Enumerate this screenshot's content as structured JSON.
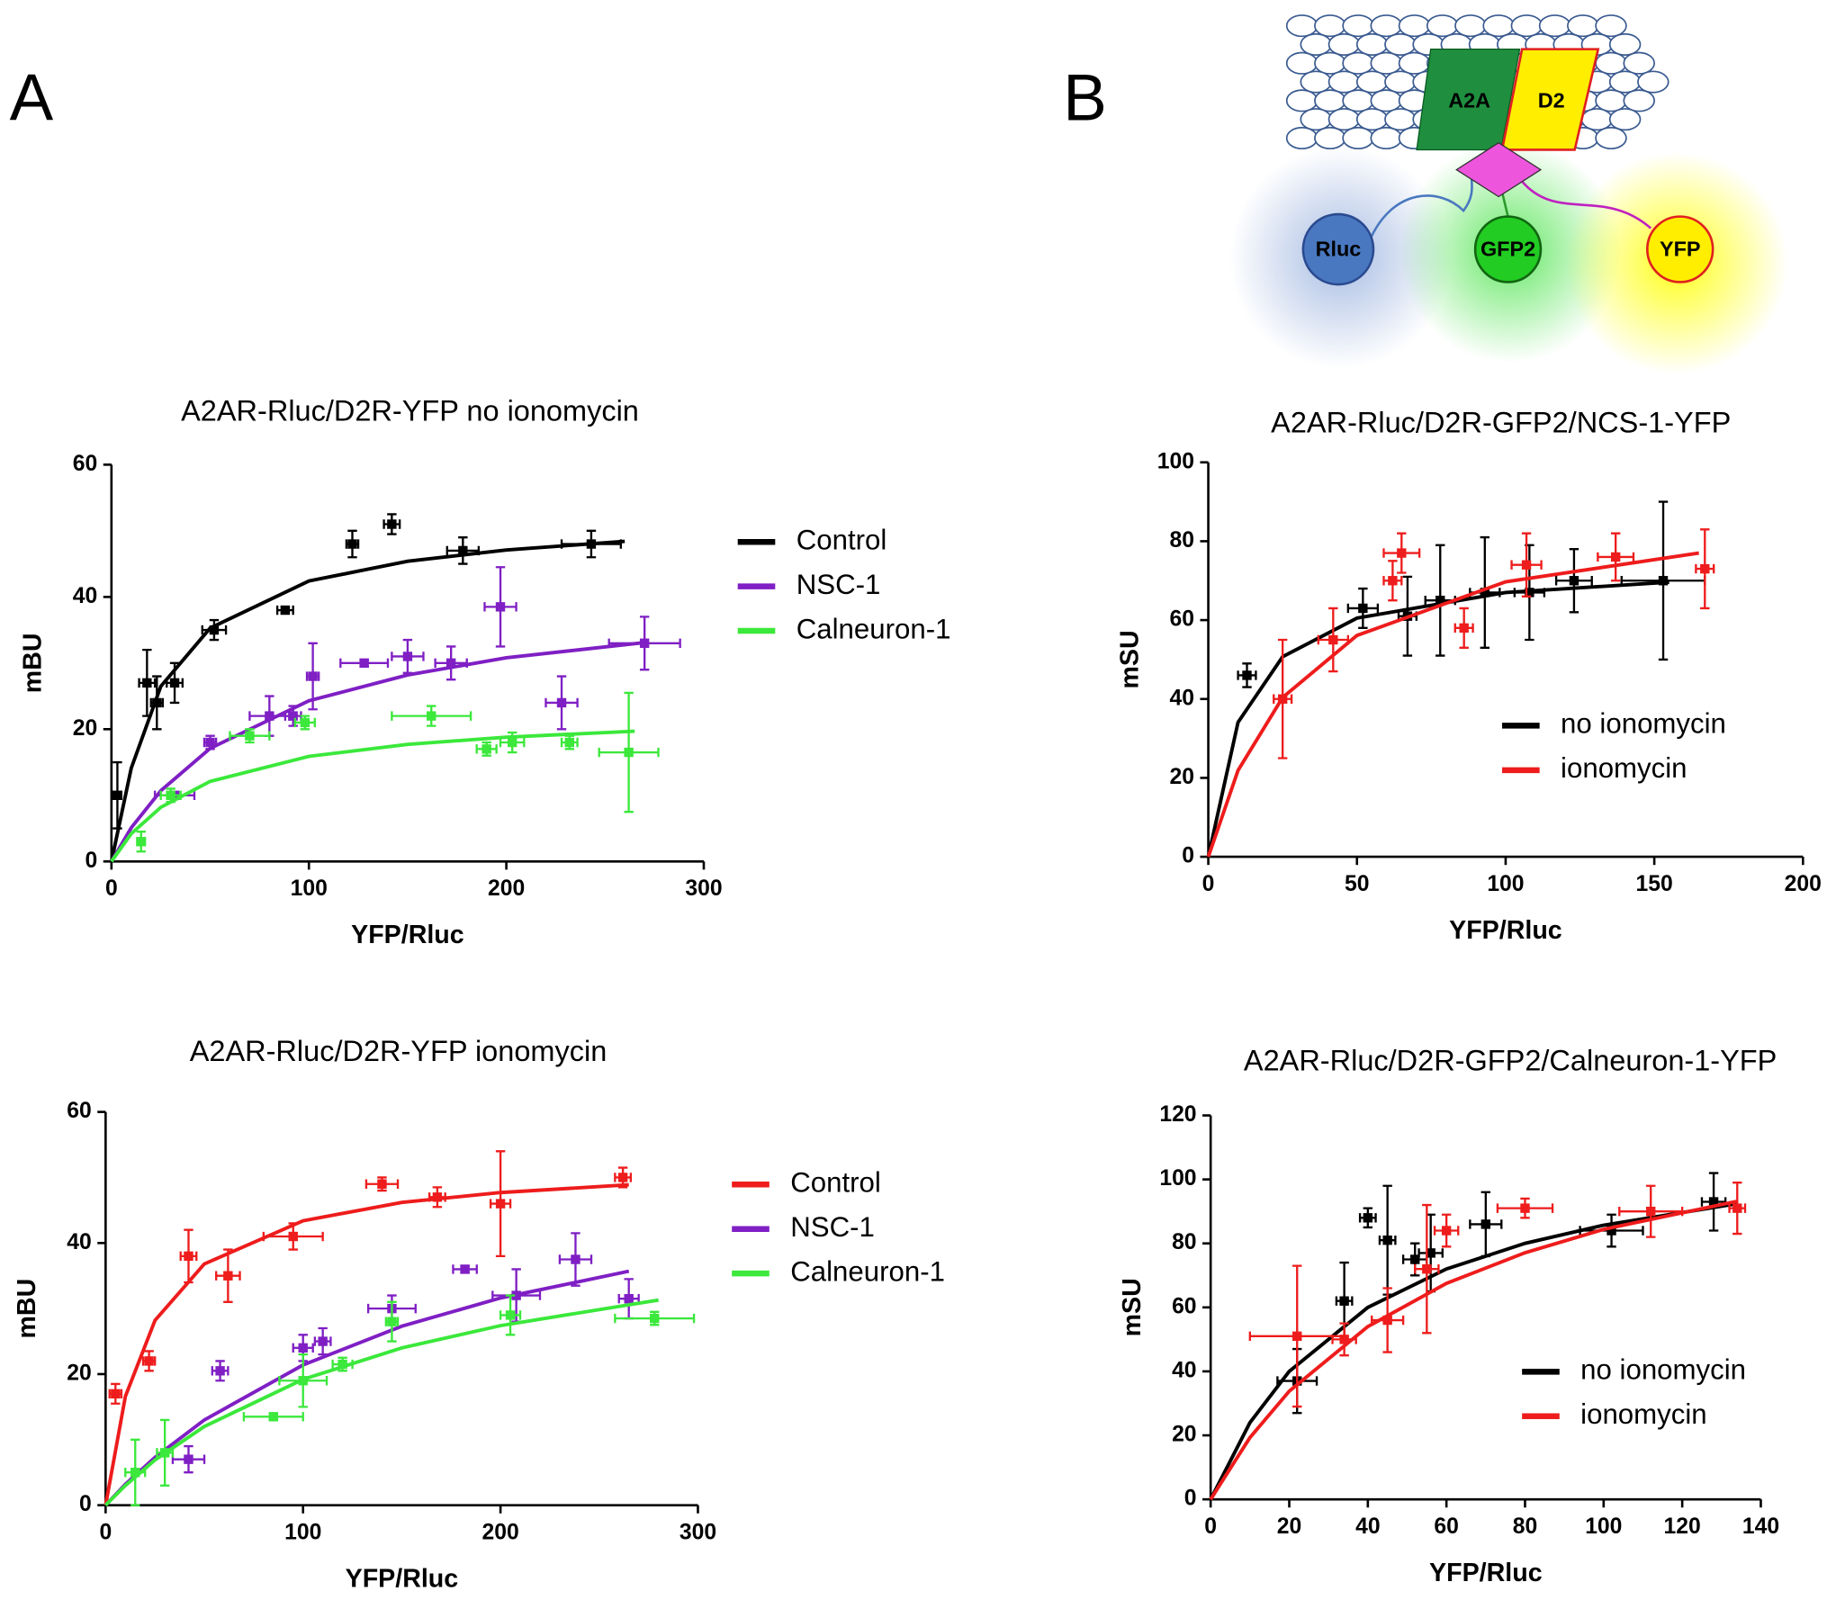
{
  "panel_labels": [
    "A",
    "B"
  ],
  "diagram": {
    "labels": [
      "A2A",
      "D2",
      "Rluc",
      "GFP2",
      "YFP"
    ]
  },
  "chart_data": [
    {
      "type": "scatter",
      "title": "A2AR-Rluc/D2R-YFP no ionomycin",
      "xlabel": "YFP/Rluc",
      "ylabel": "mBU",
      "xlim": [
        0,
        300
      ],
      "ylim": [
        0,
        60
      ],
      "xticks": [
        0,
        100,
        200,
        300
      ],
      "yticks": [
        0,
        20,
        40,
        60
      ],
      "legend": "right",
      "series": [
        {
          "name": "Control",
          "color": "#000000",
          "x": [
            3,
            18,
            23,
            32,
            52,
            88,
            122,
            142,
            178,
            243
          ],
          "values": [
            10,
            27,
            24,
            27,
            35,
            38,
            48,
            51,
            47,
            48
          ],
          "xerr": [
            2,
            4,
            3,
            4,
            6,
            4,
            3,
            4,
            8,
            15
          ],
          "yerr": [
            5,
            5,
            4,
            3,
            1.5,
            0.5,
            2,
            1.5,
            2,
            2
          ],
          "fit": {
            "x": [
              0,
              10,
              25,
              50,
              100,
              150,
              200,
              260
            ],
            "values": [
              0,
              14.1,
              26.5,
              35.3,
              42.4,
              45.4,
              47.1,
              48.4
            ]
          }
        },
        {
          "name": "NSC-1",
          "color": "#7f1fc4",
          "x": [
            32,
            50,
            80,
            92,
            102,
            128,
            150,
            172,
            197,
            228,
            270
          ],
          "values": [
            10,
            18,
            22,
            22,
            28,
            30,
            31,
            30,
            38.5,
            24,
            33
          ],
          "xerr": [
            10,
            3,
            10,
            4,
            3,
            12,
            8,
            8,
            8,
            8,
            18
          ],
          "yerr": [
            0.5,
            1,
            3,
            1.5,
            5,
            0.5,
            2.5,
            2.5,
            6,
            4,
            4
          ],
          "fit": {
            "x": [
              0,
              10,
              25,
              50,
              100,
              150,
              200,
              270
            ],
            "values": [
              0,
              5.1,
              10.7,
              17.1,
              24.3,
              28.2,
              30.8,
              33.1
            ]
          }
        },
        {
          "name": "Calneuron-1",
          "color": "#3be83b",
          "x": [
            15,
            30,
            70,
            98,
            162,
            190,
            203,
            232,
            262
          ],
          "values": [
            3,
            10,
            19,
            21,
            22,
            17,
            18,
            18,
            16.5
          ],
          "xerr": [
            2,
            5,
            10,
            5,
            20,
            5,
            6,
            4,
            15
          ],
          "yerr": [
            1.5,
            1,
            1,
            1,
            1.5,
            1,
            1.5,
            1,
            9
          ],
          "fit": {
            "x": [
              0,
              10,
              25,
              50,
              100,
              150,
              200,
              265
            ],
            "values": [
              0,
              4.2,
              8.2,
              12.1,
              15.9,
              17.7,
              18.8,
              19.7
            ]
          }
        }
      ]
    },
    {
      "type": "scatter",
      "title": "A2AR-Rluc/D2R-YFP ionomycin",
      "xlabel": "YFP/Rluc",
      "ylabel": "mBU",
      "xlim": [
        0,
        300
      ],
      "ylim": [
        0,
        60
      ],
      "xticks": [
        0,
        100,
        200,
        300
      ],
      "yticks": [
        0,
        20,
        40,
        60
      ],
      "legend": "right",
      "series": [
        {
          "name": "Control",
          "color": "#ee1c1c",
          "x": [
            5,
            22,
            42,
            62,
            95,
            140,
            168,
            200,
            262
          ],
          "values": [
            17,
            22,
            38,
            35,
            41,
            49,
            47,
            46,
            50
          ],
          "xerr": [
            3,
            3,
            4,
            6,
            15,
            8,
            4,
            5,
            4
          ],
          "yerr": [
            1.5,
            1.5,
            4,
            4,
            2,
            1,
            1.5,
            8,
            1.5
          ],
          "fit": {
            "x": [
              0,
              10,
              25,
              50,
              100,
              150,
              200,
              265
            ],
            "values": [
              0,
              16.6,
              28.2,
              36.8,
              43.4,
              46.2,
              47.7,
              48.9
            ]
          }
        },
        {
          "name": "NSC-1",
          "color": "#7f1fc4",
          "x": [
            42,
            58,
            100,
            110,
            145,
            182,
            208,
            238,
            265
          ],
          "values": [
            7,
            20.5,
            24,
            25,
            30,
            36,
            32,
            37.5,
            31.5
          ],
          "xerr": [
            8,
            4,
            5,
            4,
            12,
            6,
            12,
            8,
            5
          ],
          "yerr": [
            2,
            1.5,
            2,
            2,
            2,
            0.5,
            4,
            4,
            3
          ],
          "fit": {
            "x": [
              0,
              10,
              25,
              50,
              100,
              150,
              200,
              265
            ],
            "values": [
              0,
              3.2,
              7.3,
              13,
              21.4,
              27.3,
              31.6,
              35.7
            ]
          }
        },
        {
          "name": "Calneuron-1",
          "color": "#3be83b",
          "x": [
            15,
            30,
            85,
            100,
            120,
            145,
            205,
            278
          ],
          "values": [
            5,
            8,
            13.5,
            19,
            21.5,
            28,
            29,
            28.5
          ],
          "xerr": [
            5,
            4,
            15,
            12,
            5,
            3,
            5,
            20
          ],
          "yerr": [
            5,
            5,
            0.5,
            4,
            1,
            3,
            3,
            1
          ],
          "fit": {
            "x": [
              0,
              10,
              25,
              50,
              100,
              150,
              200,
              280
            ],
            "values": [
              0,
              3,
              6.9,
              12,
              19.2,
              24,
              27.4,
              31.3
            ]
          }
        }
      ]
    },
    {
      "type": "scatter",
      "title": "A2AR-Rluc/D2R-GFP2/NCS-1-YFP",
      "xlabel": "YFP/Rluc",
      "ylabel": "mSU",
      "xlim": [
        0,
        200
      ],
      "ylim": [
        0,
        100
      ],
      "xticks": [
        0,
        50,
        100,
        150,
        200
      ],
      "yticks": [
        0,
        20,
        40,
        60,
        80,
        100
      ],
      "legend": "lower right",
      "series": [
        {
          "name": "no  ionomycin",
          "color": "#000000",
          "x": [
            13,
            52,
            67,
            78,
            93,
            108,
            123,
            153
          ],
          "values": [
            46,
            63,
            61,
            65,
            67,
            67,
            70,
            70
          ],
          "xerr": [
            3,
            5,
            3,
            5,
            5,
            5,
            6,
            14
          ],
          "yerr": [
            3,
            5,
            10,
            14,
            14,
            12,
            8,
            20
          ],
          "fit": {
            "x": [
              0,
              10,
              25,
              50,
              100,
              155
            ],
            "values": [
              0,
              34.1,
              50.7,
              60.5,
              67,
              69.6
            ]
          }
        },
        {
          "name": "ionomycin",
          "color": "#ee1c1c",
          "x": [
            25,
            42,
            62,
            65,
            86,
            107,
            137,
            167
          ],
          "values": [
            40,
            55,
            70,
            77,
            58,
            74,
            76,
            73
          ],
          "xerr": [
            3,
            5,
            3,
            6,
            3,
            5,
            6,
            3
          ],
          "yerr": [
            15,
            8,
            5,
            5,
            5,
            8,
            6,
            10
          ],
          "fit": {
            "x": [
              0,
              10,
              25,
              50,
              100,
              165
            ],
            "values": [
              0,
              21.9,
              40.4,
              56.1,
              69.7,
              77
            ]
          }
        }
      ]
    },
    {
      "type": "scatter",
      "title": "A2AR-Rluc/D2R-GFP2/Calneuron-1-YFP",
      "xlabel": "YFP/Rluc",
      "ylabel": "mSU",
      "xlim": [
        0,
        140
      ],
      "ylim": [
        0,
        120
      ],
      "xticks": [
        0,
        20,
        40,
        60,
        80,
        100,
        120,
        140
      ],
      "yticks": [
        0,
        20,
        40,
        60,
        80,
        100,
        120
      ],
      "legend": "lower right",
      "series": [
        {
          "name": "no  ionomycin",
          "color": "#000000",
          "x": [
            22,
            34,
            40,
            45,
            52,
            56,
            70,
            102,
            128
          ],
          "values": [
            37,
            62,
            88,
            81,
            75,
            77,
            86,
            84,
            93
          ],
          "xerr": [
            5,
            2,
            2,
            2,
            3,
            3,
            4,
            8,
            3
          ],
          "yerr": [
            10,
            12,
            3,
            17,
            5,
            12,
            10,
            5,
            9
          ],
          "fit": {
            "x": [
              0,
              10,
              20,
              40,
              60,
              80,
              100,
              134
            ],
            "values": [
              0,
              24,
              40,
              60,
              72,
              80,
              85.7,
              92.4
            ]
          }
        },
        {
          "name": "ionomycin",
          "color": "#ee1c1c",
          "x": [
            22,
            34,
            45,
            55,
            60,
            80,
            112,
            134
          ],
          "values": [
            51,
            50,
            56,
            72,
            84,
            91,
            90,
            91
          ],
          "xerr": [
            12,
            3,
            4,
            3,
            3,
            7,
            8,
            2
          ],
          "yerr": [
            22,
            5,
            10,
            20,
            5,
            3,
            8,
            8
          ],
          "fit": {
            "x": [
              0,
              10,
              20,
              40,
              60,
              80,
              100,
              134
            ],
            "values": [
              0,
              19.3,
              33.8,
              54,
              67.5,
              77.1,
              84.4,
              93.2
            ]
          }
        }
      ]
    }
  ]
}
